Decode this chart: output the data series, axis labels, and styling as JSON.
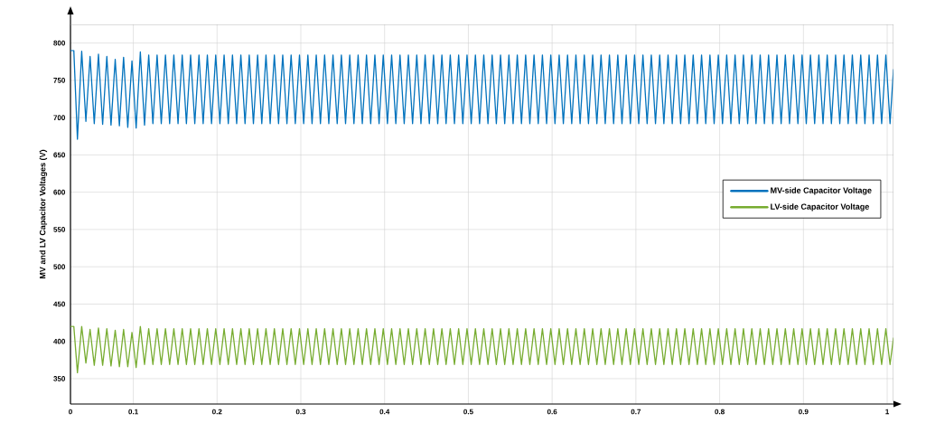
{
  "chart_data": {
    "type": "line",
    "ylabel": "MV and LV Capacitor Voltages (V)",
    "x": [
      0.025,
      0.029,
      0.0333,
      0.0384,
      0.0434,
      0.0484,
      0.0534,
      0.0584,
      0.0634,
      0.0684,
      0.0734,
      0.0784,
      0.0834,
      0.0884,
      0.0934,
      0.0984,
      0.1034,
      0.1084,
      0.1134,
      0.1184,
      0.1234,
      0.1284,
      0.1334,
      0.1384,
      0.1434,
      0.1484,
      0.1534,
      0.1584,
      0.1634,
      0.1684,
      0.1734,
      0.1784,
      0.1834,
      0.1884,
      0.1934,
      0.1984,
      0.2034,
      0.2084,
      0.2134,
      0.2184,
      0.2234,
      0.2284,
      0.2334,
      0.2384,
      0.2434,
      0.2484,
      0.2534,
      0.2584,
      0.2634,
      0.2684,
      0.2734,
      0.2784,
      0.2834,
      0.2884,
      0.2934,
      0.2984,
      0.3034,
      0.3084,
      0.3134,
      0.3184,
      0.3234,
      0.3284,
      0.3334,
      0.3384,
      0.3434,
      0.3484,
      0.3534,
      0.3584,
      0.3634,
      0.3684,
      0.3734,
      0.3784,
      0.3834,
      0.3884,
      0.3934,
      0.3984,
      0.4034,
      0.4084,
      0.4134,
      0.4184,
      0.4234,
      0.4284,
      0.4334,
      0.4384,
      0.4434,
      0.4484,
      0.4534,
      0.4584,
      0.4634,
      0.4684,
      0.4734,
      0.4784,
      0.4834,
      0.4884,
      0.4934,
      0.4984,
      0.5034,
      0.5084,
      0.5134,
      0.5184,
      0.5234,
      0.5284,
      0.5334,
      0.5384,
      0.5434,
      0.5484,
      0.5534,
      0.5584,
      0.5634,
      0.5684,
      0.5734,
      0.5784,
      0.5834,
      0.5884,
      0.5934,
      0.5984,
      0.6034,
      0.6084,
      0.6134,
      0.6184,
      0.6234,
      0.6284,
      0.6334,
      0.6384,
      0.6434,
      0.6484,
      0.6534,
      0.6584,
      0.6634,
      0.6684,
      0.6734,
      0.6784,
      0.6834,
      0.6884,
      0.6934,
      0.6984,
      0.7034,
      0.7084,
      0.7134,
      0.7184,
      0.7234,
      0.7284,
      0.7334,
      0.7384,
      0.7434,
      0.7484,
      0.7534,
      0.7584,
      0.7634,
      0.7684,
      0.7734,
      0.7784,
      0.7834,
      0.7884,
      0.7934,
      0.7984,
      0.8034,
      0.8084,
      0.8134,
      0.8184,
      0.8234,
      0.8284,
      0.8334,
      0.8384,
      0.8434,
      0.8484,
      0.8534,
      0.8584,
      0.8634,
      0.8684,
      0.8734,
      0.8784,
      0.8834,
      0.8884,
      0.8934,
      0.8984,
      0.9034,
      0.9084,
      0.9134,
      0.9184,
      0.9234,
      0.9284,
      0.9334,
      0.9384,
      0.9434,
      0.9484,
      0.9534,
      0.9584,
      0.9634,
      0.9684,
      0.9734,
      0.9784,
      0.9834,
      0.9884,
      0.9934,
      0.9984,
      1.0034,
      1.0075
    ],
    "series": [
      {
        "name": "MV-side Capacitor Voltage",
        "color": "#0072bd",
        "values": [
          790,
          790,
          671,
          789,
          695,
          782,
          692,
          785,
          691,
          782,
          690,
          778,
          689,
          781,
          687,
          776,
          686,
          788,
          690,
          784,
          692,
          784,
          692,
          784,
          692,
          784,
          692,
          784,
          692,
          784,
          692,
          784,
          692,
          784,
          692,
          784,
          692,
          784,
          692,
          784,
          692,
          784,
          692,
          784,
          692,
          784,
          692,
          784,
          692,
          784,
          692,
          784,
          692,
          784,
          692,
          784,
          692,
          784,
          692,
          784,
          692,
          784,
          692,
          784,
          692,
          784,
          692,
          784,
          692,
          784,
          692,
          784,
          692,
          784,
          692,
          784,
          692,
          784,
          692,
          784,
          692,
          784,
          692,
          784,
          692,
          784,
          692,
          784,
          692,
          784,
          692,
          784,
          692,
          784,
          692,
          784,
          692,
          784,
          692,
          784,
          692,
          784,
          692,
          784,
          692,
          784,
          692,
          784,
          692,
          784,
          692,
          784,
          692,
          784,
          692,
          784,
          692,
          784,
          692,
          784,
          692,
          784,
          692,
          784,
          692,
          784,
          692,
          784,
          692,
          784,
          692,
          784,
          692,
          784,
          692,
          784,
          692,
          784,
          692,
          784,
          692,
          784,
          692,
          784,
          692,
          784,
          692,
          784,
          692,
          784,
          692,
          784,
          692,
          784,
          692,
          784,
          692,
          784,
          692,
          784,
          692,
          784,
          692,
          784,
          692,
          784,
          692,
          784,
          692,
          784,
          692,
          784,
          692,
          784,
          692,
          784,
          692,
          784,
          692,
          784,
          692,
          784,
          692,
          784,
          692,
          784,
          692,
          784,
          692,
          784,
          692,
          784,
          692,
          784,
          692,
          784,
          692,
          765
        ]
      },
      {
        "name": "LV-side Capacitor Voltage",
        "color": "#77ac30",
        "values": [
          420,
          420,
          358,
          420,
          371,
          416,
          368,
          418,
          368,
          417,
          367,
          415,
          366,
          416,
          366,
          412,
          365,
          420,
          369,
          417,
          369,
          417,
          369,
          417,
          369,
          417,
          369,
          417,
          369,
          417,
          369,
          417,
          369,
          417,
          369,
          417,
          369,
          417,
          369,
          417,
          369,
          417,
          369,
          417,
          369,
          417,
          369,
          417,
          369,
          417,
          369,
          417,
          369,
          417,
          369,
          417,
          369,
          417,
          369,
          417,
          369,
          417,
          369,
          417,
          369,
          417,
          369,
          417,
          369,
          417,
          369,
          417,
          369,
          417,
          369,
          417,
          369,
          417,
          369,
          417,
          369,
          417,
          369,
          417,
          369,
          417,
          369,
          417,
          369,
          417,
          369,
          417,
          369,
          417,
          369,
          417,
          369,
          417,
          369,
          417,
          369,
          417,
          369,
          417,
          369,
          417,
          369,
          417,
          369,
          417,
          369,
          417,
          369,
          417,
          369,
          417,
          369,
          417,
          369,
          417,
          369,
          417,
          369,
          417,
          369,
          417,
          369,
          417,
          369,
          417,
          369,
          417,
          369,
          417,
          369,
          417,
          369,
          417,
          369,
          417,
          369,
          417,
          369,
          417,
          369,
          417,
          369,
          417,
          369,
          417,
          369,
          417,
          369,
          417,
          369,
          417,
          369,
          417,
          369,
          417,
          369,
          417,
          369,
          417,
          369,
          417,
          369,
          417,
          369,
          417,
          369,
          417,
          369,
          417,
          369,
          417,
          369,
          417,
          369,
          417,
          369,
          417,
          369,
          417,
          369,
          417,
          369,
          417,
          369,
          417,
          369,
          417,
          369,
          417,
          369,
          417,
          369,
          405
        ]
      }
    ],
    "xlim": [
      0.025,
      1.0075
    ],
    "ylim": [
      316,
      825
    ],
    "xticks": [
      {
        "value": 0.025,
        "label": "0"
      },
      0.1,
      0.2,
      0.3,
      0.4,
      0.5,
      0.6,
      0.7,
      0.8,
      0.9,
      1
    ],
    "yticks": [
      350,
      400,
      450,
      500,
      550,
      600,
      650,
      700,
      750,
      800
    ],
    "grid": true,
    "legend": "right"
  }
}
